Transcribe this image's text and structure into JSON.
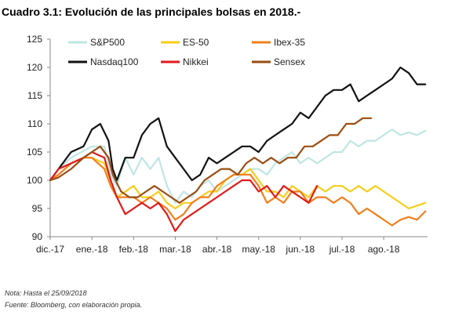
{
  "title": "Cuadro 3.1: Evolución de las principales bolsas en 2018.-",
  "notes": {
    "line1": "Nota: Hasta el 25/09/2018",
    "line2": "Fuente: Bloomberg, con elaboración propia."
  },
  "chart_data": {
    "type": "line",
    "ylim": [
      90,
      125
    ],
    "yticks": [
      90,
      95,
      100,
      105,
      110,
      115,
      120,
      125
    ],
    "xlim": [
      0,
      9.05
    ],
    "xticks": [
      {
        "label": "dic.-17",
        "x": 0
      },
      {
        "label": "ene.-18",
        "x": 1
      },
      {
        "label": "feb.-18",
        "x": 2
      },
      {
        "label": "mar.-18",
        "x": 3
      },
      {
        "label": "abr.-18",
        "x": 4
      },
      {
        "label": "may.-18",
        "x": 5
      },
      {
        "label": "jun.-18",
        "x": 6
      },
      {
        "label": "jul.-18",
        "x": 7
      },
      {
        "label": "ago.-18",
        "x": 8
      }
    ],
    "grid": false,
    "legend_position": "top-left",
    "series": [
      {
        "name": "S&P500",
        "color": "#bfe6e3",
        "points": [
          [
            0,
            100
          ],
          [
            0.2,
            102
          ],
          [
            0.5,
            104
          ],
          [
            1.0,
            106
          ],
          [
            1.3,
            106
          ],
          [
            1.45,
            101
          ],
          [
            1.6,
            99
          ],
          [
            1.8,
            104
          ],
          [
            2.0,
            101
          ],
          [
            2.2,
            104
          ],
          [
            2.4,
            102
          ],
          [
            2.6,
            104
          ],
          [
            2.8,
            99
          ],
          [
            3.0,
            96
          ],
          [
            3.2,
            98
          ],
          [
            3.4,
            97
          ],
          [
            3.6,
            99
          ],
          [
            3.8,
            100
          ],
          [
            4.0,
            98
          ],
          [
            4.2,
            99
          ],
          [
            4.4,
            100
          ],
          [
            4.6,
            101
          ],
          [
            4.8,
            102
          ],
          [
            5.0,
            102
          ],
          [
            5.2,
            101
          ],
          [
            5.4,
            103
          ],
          [
            5.6,
            104
          ],
          [
            5.8,
            105
          ],
          [
            6.0,
            103
          ],
          [
            6.2,
            104
          ],
          [
            6.4,
            103
          ],
          [
            6.6,
            104
          ],
          [
            6.8,
            105
          ],
          [
            7.0,
            105
          ],
          [
            7.2,
            107
          ],
          [
            7.4,
            106
          ],
          [
            7.6,
            107
          ],
          [
            7.8,
            107
          ],
          [
            8.0,
            108
          ],
          [
            8.2,
            109
          ],
          [
            8.4,
            108
          ],
          [
            8.6,
            108.5
          ],
          [
            8.8,
            108
          ],
          [
            9.0,
            108.8
          ]
        ]
      },
      {
        "name": "ES-50",
        "color": "#f7cd1a",
        "points": [
          [
            0,
            100
          ],
          [
            0.2,
            101
          ],
          [
            0.5,
            103
          ],
          [
            0.8,
            104
          ],
          [
            1.0,
            104
          ],
          [
            1.3,
            103
          ],
          [
            1.45,
            100
          ],
          [
            1.6,
            97
          ],
          [
            1.8,
            98
          ],
          [
            2.0,
            99
          ],
          [
            2.2,
            97
          ],
          [
            2.4,
            97
          ],
          [
            2.6,
            98
          ],
          [
            2.8,
            96
          ],
          [
            3.0,
            95
          ],
          [
            3.2,
            96
          ],
          [
            3.4,
            96
          ],
          [
            3.6,
            97
          ],
          [
            3.8,
            98
          ],
          [
            4.0,
            98
          ],
          [
            4.2,
            100
          ],
          [
            4.4,
            101
          ],
          [
            4.6,
            101
          ],
          [
            4.8,
            102
          ],
          [
            5.0,
            100
          ],
          [
            5.2,
            98
          ],
          [
            5.4,
            98
          ],
          [
            5.6,
            97
          ],
          [
            5.8,
            99
          ],
          [
            6.0,
            98
          ],
          [
            6.2,
            97
          ],
          [
            6.4,
            99
          ],
          [
            6.6,
            98
          ],
          [
            6.8,
            99
          ],
          [
            7.0,
            99
          ],
          [
            7.2,
            98
          ],
          [
            7.4,
            99
          ],
          [
            7.6,
            98
          ],
          [
            7.8,
            99
          ],
          [
            8.0,
            98
          ],
          [
            8.2,
            97
          ],
          [
            8.4,
            96
          ],
          [
            8.6,
            95
          ],
          [
            8.8,
            95.5
          ],
          [
            9.0,
            96
          ]
        ]
      },
      {
        "name": "Ibex-35",
        "color": "#f07f1c",
        "points": [
          [
            0,
            100
          ],
          [
            0.2,
            101
          ],
          [
            0.5,
            103
          ],
          [
            0.8,
            104
          ],
          [
            1.0,
            104
          ],
          [
            1.3,
            102
          ],
          [
            1.45,
            99
          ],
          [
            1.6,
            97
          ],
          [
            1.8,
            97
          ],
          [
            2.0,
            97
          ],
          [
            2.2,
            96
          ],
          [
            2.4,
            97
          ],
          [
            2.6,
            96
          ],
          [
            2.8,
            95
          ],
          [
            3.0,
            93
          ],
          [
            3.2,
            94
          ],
          [
            3.4,
            96
          ],
          [
            3.6,
            97
          ],
          [
            3.8,
            97
          ],
          [
            4.0,
            99
          ],
          [
            4.2,
            100
          ],
          [
            4.4,
            101
          ],
          [
            4.6,
            101
          ],
          [
            4.8,
            101
          ],
          [
            5.0,
            99
          ],
          [
            5.2,
            96
          ],
          [
            5.4,
            97
          ],
          [
            5.6,
            96
          ],
          [
            5.8,
            98
          ],
          [
            6.0,
            98
          ],
          [
            6.2,
            96
          ],
          [
            6.4,
            97
          ],
          [
            6.6,
            97
          ],
          [
            6.8,
            96
          ],
          [
            7.0,
            97
          ],
          [
            7.2,
            96
          ],
          [
            7.4,
            94
          ],
          [
            7.6,
            95
          ],
          [
            7.8,
            94
          ],
          [
            8.0,
            93
          ],
          [
            8.2,
            92
          ],
          [
            8.4,
            93
          ],
          [
            8.6,
            93.5
          ],
          [
            8.8,
            93
          ],
          [
            9.0,
            94.5
          ]
        ]
      },
      {
        "name": "Nasdaq100",
        "color": "#111111",
        "points": [
          [
            0,
            100
          ],
          [
            0.2,
            102
          ],
          [
            0.5,
            105
          ],
          [
            0.8,
            106
          ],
          [
            1.0,
            109
          ],
          [
            1.2,
            110
          ],
          [
            1.4,
            107
          ],
          [
            1.5,
            102
          ],
          [
            1.6,
            100
          ],
          [
            1.8,
            104
          ],
          [
            2.0,
            104
          ],
          [
            2.2,
            108
          ],
          [
            2.4,
            110
          ],
          [
            2.6,
            111
          ],
          [
            2.8,
            106
          ],
          [
            3.0,
            104
          ],
          [
            3.2,
            102
          ],
          [
            3.4,
            100
          ],
          [
            3.6,
            101
          ],
          [
            3.8,
            104
          ],
          [
            4.0,
            103
          ],
          [
            4.2,
            104
          ],
          [
            4.4,
            105
          ],
          [
            4.6,
            106
          ],
          [
            4.8,
            106
          ],
          [
            5.0,
            105
          ],
          [
            5.2,
            107
          ],
          [
            5.4,
            108
          ],
          [
            5.6,
            109
          ],
          [
            5.8,
            110
          ],
          [
            6.0,
            112
          ],
          [
            6.2,
            111
          ],
          [
            6.4,
            113
          ],
          [
            6.6,
            115
          ],
          [
            6.8,
            116
          ],
          [
            7.0,
            116
          ],
          [
            7.2,
            117
          ],
          [
            7.4,
            114
          ],
          [
            7.6,
            115
          ],
          [
            7.8,
            116
          ],
          [
            8.0,
            117
          ],
          [
            8.2,
            118
          ],
          [
            8.4,
            120
          ],
          [
            8.6,
            119
          ],
          [
            8.8,
            117
          ],
          [
            9.0,
            117
          ]
        ]
      },
      {
        "name": "Nikkei",
        "color": "#e21a1a",
        "points": [
          [
            0,
            100
          ],
          [
            0.2,
            102
          ],
          [
            0.5,
            103
          ],
          [
            0.8,
            104
          ],
          [
            1.0,
            105
          ],
          [
            1.3,
            104
          ],
          [
            1.45,
            100
          ],
          [
            1.6,
            97
          ],
          [
            1.8,
            94
          ],
          [
            2.0,
            95
          ],
          [
            2.2,
            96
          ],
          [
            2.4,
            95
          ],
          [
            2.6,
            96
          ],
          [
            2.8,
            94
          ],
          [
            3.0,
            91
          ],
          [
            3.2,
            93
          ],
          [
            3.4,
            94
          ],
          [
            3.6,
            95
          ],
          [
            3.8,
            96
          ],
          [
            4.0,
            97
          ],
          [
            4.2,
            98
          ],
          [
            4.4,
            99
          ],
          [
            4.6,
            100
          ],
          [
            4.8,
            100
          ],
          [
            5.0,
            98
          ],
          [
            5.2,
            99
          ],
          [
            5.4,
            97
          ],
          [
            5.6,
            99
          ],
          [
            5.8,
            98
          ],
          [
            6.0,
            97
          ],
          [
            6.2,
            96
          ],
          [
            6.4,
            99
          ]
        ]
      },
      {
        "name": "Sensex",
        "color": "#9a4d12",
        "points": [
          [
            0,
            100
          ],
          [
            0.2,
            100.5
          ],
          [
            0.5,
            102
          ],
          [
            0.8,
            104
          ],
          [
            1.0,
            105
          ],
          [
            1.2,
            106
          ],
          [
            1.4,
            104
          ],
          [
            1.5,
            101
          ],
          [
            1.7,
            98
          ],
          [
            1.9,
            97
          ],
          [
            2.1,
            97
          ],
          [
            2.3,
            98
          ],
          [
            2.5,
            99
          ],
          [
            2.7,
            98
          ],
          [
            2.9,
            97
          ],
          [
            3.1,
            96
          ],
          [
            3.3,
            97
          ],
          [
            3.5,
            98
          ],
          [
            3.7,
            100
          ],
          [
            3.9,
            101
          ],
          [
            4.1,
            102
          ],
          [
            4.3,
            102
          ],
          [
            4.5,
            101
          ],
          [
            4.7,
            103
          ],
          [
            4.9,
            104
          ],
          [
            5.1,
            103
          ],
          [
            5.3,
            104
          ],
          [
            5.5,
            103
          ],
          [
            5.7,
            104
          ],
          [
            5.9,
            104
          ],
          [
            6.1,
            106
          ],
          [
            6.3,
            106
          ],
          [
            6.5,
            107
          ],
          [
            6.7,
            108
          ],
          [
            6.9,
            108
          ],
          [
            7.1,
            110
          ],
          [
            7.3,
            110
          ],
          [
            7.5,
            111
          ],
          [
            7.7,
            111
          ]
        ]
      }
    ]
  }
}
